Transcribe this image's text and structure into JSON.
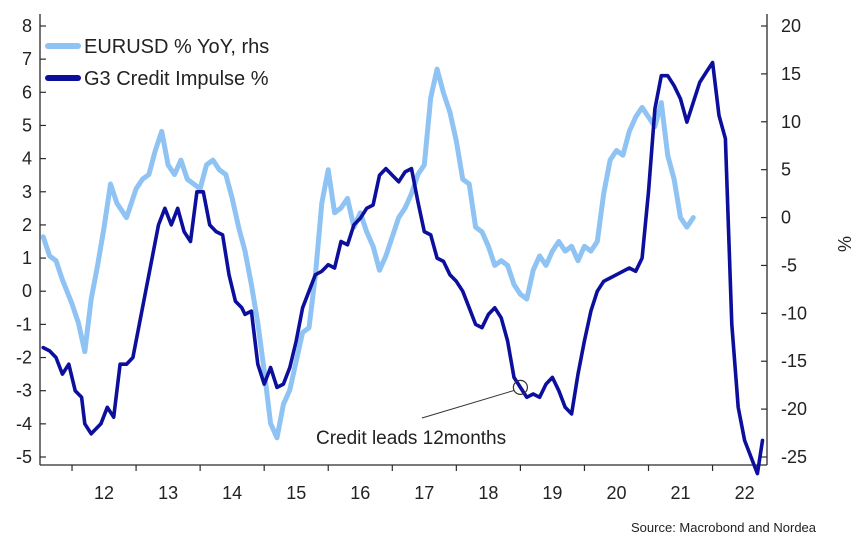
{
  "colors": {
    "eurusd": "#8fc3f3",
    "credit": "#0c0f9c",
    "axis": "#2b2b2b",
    "text": "#222222"
  },
  "source": "Source: Macrobond and Nordea",
  "chart_data": {
    "type": "line",
    "title": "",
    "grid": false,
    "legend_position": "top-left",
    "x_axis": {
      "ticks": [
        "12",
        "13",
        "14",
        "15",
        "16",
        "17",
        "18",
        "19",
        "20",
        "21",
        "22"
      ],
      "range": [
        2011.5,
        2022.85
      ]
    },
    "y_left": {
      "ticks": [
        "8",
        "7",
        "6",
        "5",
        "4",
        "3",
        "2",
        "1",
        "0",
        "-1",
        "-2",
        "-3",
        "-4",
        "-5"
      ],
      "range": [
        -5,
        8
      ]
    },
    "y_right": {
      "label": "%",
      "ticks": [
        "20",
        "15",
        "10",
        "5",
        "0",
        "-5",
        "-10",
        "-15",
        "-20",
        "-25"
      ],
      "range": [
        -25,
        20
      ]
    },
    "annotation": {
      "text": "Credit leads 12months",
      "points_to": [
        2019.0,
        -2.9
      ]
    },
    "series": [
      {
        "name": "EURUSD % YoY, rhs",
        "axis": "right",
        "x": [
          2011.55,
          2011.65,
          2011.75,
          2011.85,
          2012.0,
          2012.1,
          2012.2,
          2012.3,
          2012.4,
          2012.5,
          2012.6,
          2012.7,
          2012.85,
          2013.0,
          2013.1,
          2013.2,
          2013.3,
          2013.4,
          2013.5,
          2013.6,
          2013.7,
          2013.8,
          2013.9,
          2014.0,
          2014.1,
          2014.2,
          2014.3,
          2014.4,
          2014.5,
          2014.6,
          2014.7,
          2014.8,
          2014.9,
          2015.0,
          2015.1,
          2015.2,
          2015.3,
          2015.4,
          2015.5,
          2015.6,
          2015.7,
          2015.8,
          2015.9,
          2016.0,
          2016.1,
          2016.2,
          2016.3,
          2016.4,
          2016.5,
          2016.6,
          2016.7,
          2016.8,
          2016.9,
          2017.0,
          2017.1,
          2017.2,
          2017.3,
          2017.4,
          2017.5,
          2017.6,
          2017.7,
          2017.8,
          2017.9,
          2018.0,
          2018.1,
          2018.2,
          2018.3,
          2018.4,
          2018.5,
          2018.6,
          2018.7,
          2018.8,
          2018.9,
          2019.0,
          2019.1,
          2019.2,
          2019.3,
          2019.4,
          2019.5,
          2019.6,
          2019.7,
          2019.8,
          2019.9,
          2020.0,
          2020.1,
          2020.2,
          2020.3,
          2020.4,
          2020.5,
          2020.6,
          2020.7,
          2020.8,
          2020.9,
          2021.0,
          2021.1,
          2021.2,
          2021.3,
          2021.4,
          2021.5,
          2021.6,
          2021.7
        ],
        "y": [
          -2.0,
          -4.0,
          -4.5,
          -6.5,
          -9.0,
          -11.0,
          -14.0,
          -8.5,
          -5.0,
          -1.0,
          3.5,
          1.5,
          0.0,
          3.0,
          4.0,
          4.5,
          7.0,
          9.0,
          5.5,
          4.5,
          6.0,
          4.0,
          3.5,
          3.0,
          5.5,
          6.0,
          5.0,
          4.5,
          2.0,
          -1.0,
          -3.5,
          -7.0,
          -11.0,
          -16.0,
          -21.5,
          -23.0,
          -19.5,
          -18.0,
          -15.0,
          -12.0,
          -11.5,
          -6.0,
          1.5,
          5.0,
          0.5,
          1.0,
          2.0,
          -1.0,
          0.5,
          -1.5,
          -3.0,
          -5.5,
          -4.0,
          -2.0,
          0.0,
          1.0,
          2.5,
          4.5,
          5.5,
          12.5,
          15.5,
          13.0,
          11.0,
          8.0,
          4.0,
          3.5,
          -1.0,
          -1.5,
          -3.0,
          -5.0,
          -4.5,
          -5.0,
          -7.0,
          -8.0,
          -8.5,
          -5.5,
          -4.0,
          -5.0,
          -3.5,
          -2.5,
          -3.5,
          -3.0,
          -4.5,
          -3.0,
          -3.5,
          -2.5,
          2.5,
          6.0,
          7.0,
          6.5,
          9.0,
          10.5,
          11.5,
          10.5,
          9.5,
          12.0,
          6.5,
          4.0,
          0.0,
          -1.0,
          0.0
        ]
      },
      {
        "name": "G3 Credit Impulse %",
        "axis": "left",
        "x": [
          2011.55,
          2011.65,
          2011.75,
          2011.85,
          2011.95,
          2012.05,
          2012.15,
          2012.2,
          2012.3,
          2012.45,
          2012.55,
          2012.65,
          2012.75,
          2012.85,
          2012.95,
          2013.05,
          2013.15,
          2013.25,
          2013.35,
          2013.45,
          2013.55,
          2013.65,
          2013.75,
          2013.85,
          2013.95,
          2014.05,
          2014.15,
          2014.25,
          2014.35,
          2014.45,
          2014.55,
          2014.65,
          2014.7,
          2014.8,
          2014.9,
          2015.0,
          2015.1,
          2015.2,
          2015.3,
          2015.4,
          2015.5,
          2015.6,
          2015.7,
          2015.8,
          2015.9,
          2016.0,
          2016.1,
          2016.2,
          2016.3,
          2016.4,
          2016.5,
          2016.6,
          2016.7,
          2016.8,
          2016.9,
          2017.0,
          2017.1,
          2017.2,
          2017.3,
          2017.4,
          2017.5,
          2017.6,
          2017.7,
          2017.8,
          2017.9,
          2018.0,
          2018.1,
          2018.2,
          2018.3,
          2018.4,
          2018.5,
          2018.6,
          2018.7,
          2018.8,
          2018.9,
          2019.0,
          2019.1,
          2019.2,
          2019.3,
          2019.4,
          2019.5,
          2019.6,
          2019.7,
          2019.8,
          2019.9,
          2020.0,
          2020.1,
          2020.2,
          2020.3,
          2020.4,
          2020.5,
          2020.6,
          2020.7,
          2020.8,
          2020.9,
          2021.0,
          2021.1,
          2021.2,
          2021.3,
          2021.4,
          2021.5,
          2021.6,
          2021.7,
          2021.8,
          2021.9,
          2022.0,
          2022.1,
          2022.2,
          2022.3,
          2022.4,
          2022.5,
          2022.6,
          2022.7,
          2022.78
        ],
        "y": [
          -1.7,
          -1.8,
          -2.0,
          -2.5,
          -2.2,
          -3.0,
          -3.2,
          -4.0,
          -4.3,
          -4.0,
          -3.5,
          -3.8,
          -2.2,
          -2.2,
          -2.0,
          -1.0,
          0.0,
          1.0,
          2.0,
          2.5,
          2.0,
          2.5,
          1.8,
          1.5,
          3.0,
          3.0,
          2.0,
          1.8,
          1.7,
          0.5,
          -0.3,
          -0.5,
          -0.7,
          -0.6,
          -2.2,
          -2.8,
          -2.3,
          -2.9,
          -2.8,
          -2.3,
          -1.5,
          -0.5,
          0.0,
          0.5,
          0.6,
          0.8,
          0.7,
          1.5,
          1.4,
          2.0,
          2.2,
          2.5,
          2.6,
          3.5,
          3.7,
          3.5,
          3.3,
          3.6,
          3.7,
          2.7,
          1.8,
          1.7,
          1.0,
          0.9,
          0.5,
          0.3,
          0.0,
          -0.5,
          -1.0,
          -1.1,
          -0.7,
          -0.5,
          -0.8,
          -1.5,
          -2.6,
          -2.9,
          -3.2,
          -3.1,
          -3.2,
          -2.8,
          -2.6,
          -3.0,
          -3.5,
          -3.7,
          -2.5,
          -1.5,
          -0.6,
          0.0,
          0.3,
          0.4,
          0.5,
          0.6,
          0.7,
          0.6,
          1.0,
          3.0,
          5.5,
          6.5,
          6.5,
          6.2,
          5.8,
          5.1,
          5.7,
          6.3,
          6.6,
          6.9,
          5.3,
          4.6,
          -1.0,
          -3.5,
          -4.5,
          -5.0,
          -5.5,
          -4.5
        ]
      }
    ]
  }
}
